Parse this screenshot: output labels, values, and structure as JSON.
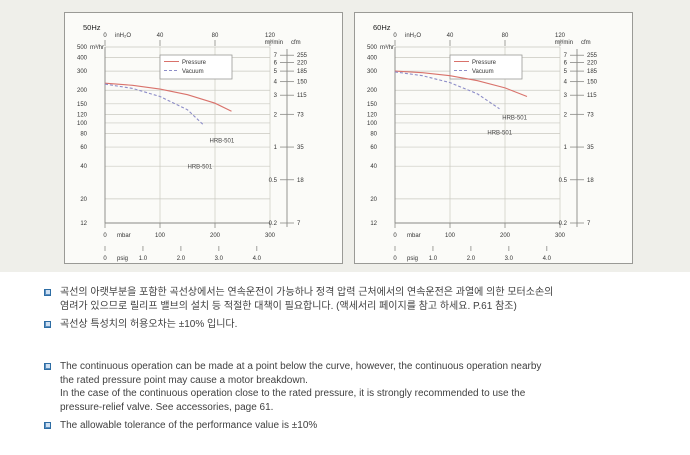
{
  "chart_data": [
    {
      "type": "line",
      "title": "50Hz",
      "x_axes": {
        "mbar": {
          "unit": "mbar",
          "range": [
            0,
            300
          ],
          "ticks": [
            0,
            100,
            200,
            300
          ]
        },
        "inh2o": {
          "unit": "inH₂O",
          "ticks": [
            {
              "label": "0",
              "mbar": 0
            },
            {
              "label": "40",
              "mbar": 100
            },
            {
              "label": "80",
              "mbar": 200
            },
            {
              "label": "120",
              "mbar": 300
            }
          ]
        },
        "psig": {
          "unit": "psig",
          "ticks": [
            {
              "label": "0",
              "mbar": 0
            },
            {
              "label": "1.0",
              "mbar": 69
            },
            {
              "label": "2.0",
              "mbar": 138
            },
            {
              "label": "3.0",
              "mbar": 207
            },
            {
              "label": "4.0",
              "mbar": 276
            }
          ]
        }
      },
      "y_axes": {
        "m3hr": {
          "unit": "m³/hr",
          "scale": "log",
          "range": [
            12,
            500
          ],
          "ticks": [
            500,
            400,
            300,
            200,
            150,
            120,
            100,
            80,
            60,
            40,
            20,
            12
          ]
        },
        "right": {
          "unit1": "m³/min",
          "unit2": "cfm",
          "ticks": [
            {
              "m3min": "7",
              "cfm": "255",
              "m3hr": 420
            },
            {
              "m3min": "6",
              "cfm": "220",
              "m3hr": 360
            },
            {
              "m3min": "5",
              "cfm": "185",
              "m3hr": 300
            },
            {
              "m3min": "4",
              "cfm": "150",
              "m3hr": 240
            },
            {
              "m3min": "3",
              "cfm": "115",
              "m3hr": 180
            },
            {
              "m3min": "2",
              "cfm": "73",
              "m3hr": 120
            },
            {
              "m3min": "1",
              "cfm": "35",
              "m3hr": 60
            },
            {
              "m3min": "0.5",
              "cfm": "18",
              "m3hr": 30
            },
            {
              "m3min": "0.2",
              "cfm": "7",
              "m3hr": 12
            }
          ]
        }
      },
      "legend": {
        "position": "top-center"
      },
      "series": [
        {
          "name": "Pressure",
          "color": "#d9726b",
          "line": "solid",
          "label": "HRB-501",
          "label_at": [
            190,
            66
          ],
          "points": [
            [
              0,
              232
            ],
            [
              50,
              222
            ],
            [
              100,
              205
            ],
            [
              150,
              182
            ],
            [
              200,
              152
            ],
            [
              230,
              128
            ]
          ]
        },
        {
          "name": "Vacuum",
          "color": "#8d8dc8",
          "line": "dashed",
          "label": "HRB-501",
          "label_at": [
            150,
            38
          ],
          "points": [
            [
              0,
              228
            ],
            [
              50,
              208
            ],
            [
              100,
              175
            ],
            [
              150,
              132
            ],
            [
              180,
              95
            ]
          ]
        }
      ]
    },
    {
      "type": "line",
      "title": "60Hz",
      "x_axes": {
        "mbar": {
          "unit": "mbar",
          "range": [
            0,
            300
          ],
          "ticks": [
            0,
            100,
            200,
            300
          ]
        },
        "inh2o": {
          "unit": "inH₂O",
          "ticks": [
            {
              "label": "0",
              "mbar": 0
            },
            {
              "label": "40",
              "mbar": 100
            },
            {
              "label": "80",
              "mbar": 200
            },
            {
              "label": "120",
              "mbar": 300
            }
          ]
        },
        "psig": {
          "unit": "psig",
          "ticks": [
            {
              "label": "0",
              "mbar": 0
            },
            {
              "label": "1.0",
              "mbar": 69
            },
            {
              "label": "2.0",
              "mbar": 138
            },
            {
              "label": "3.0",
              "mbar": 207
            },
            {
              "label": "4.0",
              "mbar": 276
            }
          ]
        }
      },
      "y_axes": {
        "m3hr": {
          "unit": "m³/hr",
          "scale": "log",
          "range": [
            12,
            500
          ],
          "ticks": [
            500,
            400,
            300,
            200,
            150,
            120,
            100,
            80,
            60,
            40,
            20,
            12
          ]
        },
        "right": {
          "unit1": "m³/min",
          "unit2": "cfm",
          "ticks": [
            {
              "m3min": "7",
              "cfm": "255",
              "m3hr": 420
            },
            {
              "m3min": "6",
              "cfm": "220",
              "m3hr": 360
            },
            {
              "m3min": "5",
              "cfm": "185",
              "m3hr": 300
            },
            {
              "m3min": "4",
              "cfm": "150",
              "m3hr": 240
            },
            {
              "m3min": "3",
              "cfm": "115",
              "m3hr": 180
            },
            {
              "m3min": "2",
              "cfm": "73",
              "m3hr": 120
            },
            {
              "m3min": "1",
              "cfm": "35",
              "m3hr": 60
            },
            {
              "m3min": "0.5",
              "cfm": "18",
              "m3hr": 30
            },
            {
              "m3min": "0.2",
              "cfm": "7",
              "m3hr": 12
            }
          ]
        }
      },
      "legend": {
        "position": "top-center"
      },
      "series": [
        {
          "name": "Pressure",
          "color": "#d9726b",
          "line": "solid",
          "label": "HRB-501",
          "label_at": [
            195,
            108
          ],
          "points": [
            [
              0,
              300
            ],
            [
              50,
              290
            ],
            [
              100,
              272
            ],
            [
              150,
              245
            ],
            [
              200,
              210
            ],
            [
              240,
              175
            ]
          ]
        },
        {
          "name": "Vacuum",
          "color": "#8d8dc8",
          "line": "dashed",
          "label": "HRB-501",
          "label_at": [
            168,
            78
          ],
          "points": [
            [
              0,
              295
            ],
            [
              50,
              272
            ],
            [
              100,
              235
            ],
            [
              150,
              185
            ],
            [
              190,
              135
            ]
          ]
        }
      ]
    }
  ],
  "notes": {
    "korean": [
      "곡선의 아랫부분을 포함한 곡선상에서는 연속운전이 가능하나 정격 압력 근처에서의 연속운전은 과열에 의한 모터소손의\n염려가 있으므로 릴리프 밸브의 설치 등 적절한 대책이 필요합니다. (액세서리 페이지를 참고 하세요. P.61 참조)",
      "곡선상 특성치의 허용오차는 ±10% 입니다."
    ],
    "english": [
      "The continuous operation can be made at a point below the curve, however, the continuous operation nearby\nthe rated pressure point may cause a motor breakdown.\nIn the case of the continuous operation close to the rated pressure, it is strongly recommended to use the\npressure-relief valve. See accessories, page 61.",
      "The allowable tolerance of the performance value is ±10%"
    ]
  }
}
